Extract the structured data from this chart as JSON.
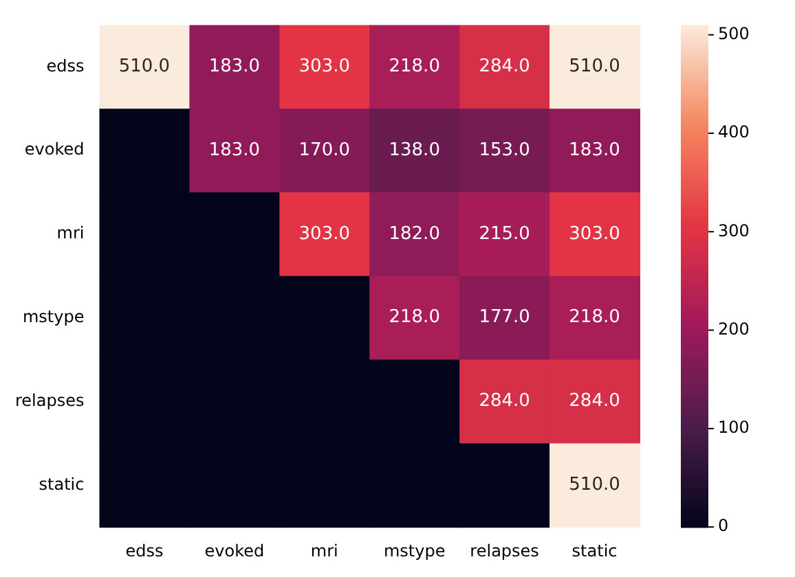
{
  "chart_data": {
    "type": "heatmap",
    "categories": [
      "edss",
      "evoked",
      "mri",
      "mstype",
      "relapses",
      "static"
    ],
    "y_categories": [
      "edss",
      "evoked",
      "mri",
      "mstype",
      "relapses",
      "static"
    ],
    "cells": [
      [
        510,
        183,
        303,
        218,
        284,
        510
      ],
      [
        0,
        183,
        170,
        138,
        153,
        183
      ],
      [
        0,
        0,
        303,
        182,
        215,
        303
      ],
      [
        0,
        0,
        0,
        218,
        177,
        218
      ],
      [
        0,
        0,
        0,
        0,
        284,
        284
      ],
      [
        0,
        0,
        0,
        0,
        0,
        510
      ]
    ],
    "cell_labels": [
      [
        "510.0",
        "183.0",
        "303.0",
        "218.0",
        "284.0",
        "510.0"
      ],
      [
        null,
        "183.0",
        "170.0",
        "138.0",
        "153.0",
        "183.0"
      ],
      [
        null,
        null,
        "303.0",
        "182.0",
        "215.0",
        "303.0"
      ],
      [
        null,
        null,
        null,
        "218.0",
        "177.0",
        "218.0"
      ],
      [
        null,
        null,
        null,
        null,
        "284.0",
        "284.0"
      ],
      [
        null,
        null,
        null,
        null,
        null,
        "510.0"
      ]
    ],
    "clim": [
      0,
      510
    ],
    "cticks": [
      0,
      100,
      200,
      300,
      400,
      500
    ]
  }
}
